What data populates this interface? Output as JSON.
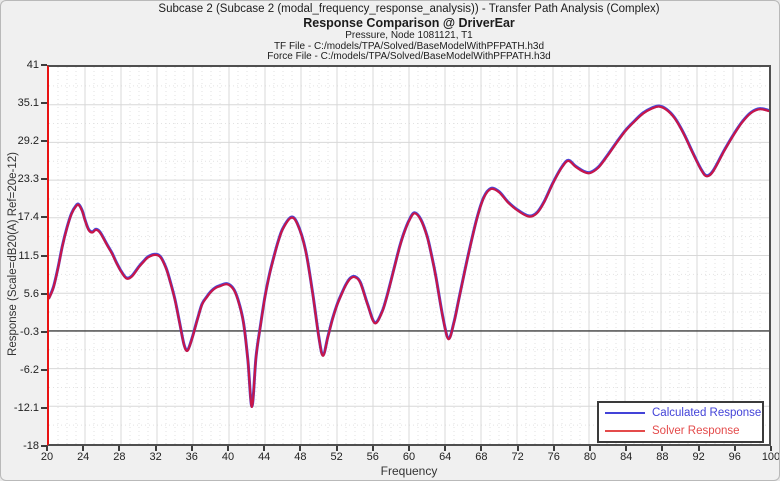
{
  "header": {
    "line1": "Subcase 2 (Subcase 2 (modal_frequency_response_analysis)) - Transfer Path Analysis (Complex)",
    "line2": "Response Comparison @ DriverEar",
    "line3": "Pressure, Node 1081121, T1",
    "line4": "TF File - C:/models/TPA/Solved/BaseModelWithPFPATH.h3d",
    "line5": "Force File - C:/models/TPA/Solved/BaseModelWithPFPATH.h3d"
  },
  "axes": {
    "x_title": "Frequency",
    "y_title": "Response (Scale=dB20(A) Ref=20e-12)",
    "y_tick_labels": [
      "41",
      "35.1",
      "29.2",
      "23.3",
      "17.4",
      "11.5",
      "5.6",
      "-0.3",
      "-6.2",
      "-12.1",
      "-18"
    ],
    "x_tick_labels": [
      "20",
      "24",
      "28",
      "32",
      "36",
      "40",
      "44",
      "48",
      "52",
      "56",
      "60",
      "64",
      "68",
      "72",
      "76",
      "80",
      "84",
      "88",
      "92",
      "96",
      "100"
    ]
  },
  "legend": {
    "entries": [
      {
        "label": "Calculated Response",
        "color": "#4343d8"
      },
      {
        "label": "Solver Response",
        "color": "#e44b4b"
      }
    ]
  },
  "colors": {
    "figure_bg": "#f0f0f0",
    "plot_bg": "#ffffff",
    "grid_major": "#d8d8d8",
    "grid_minor": "#e2e2e2",
    "zero_line": "#3f3f3f",
    "y_axis_line": "#e81212",
    "frame": "#4f4f4f",
    "curve_calculated": "#4848dc",
    "curve_solver": "#c81648"
  },
  "chart_data": {
    "type": "line",
    "title": "Response Comparison @ DriverEar",
    "xlabel": "Frequency",
    "ylabel": "Response (Scale=dB20(A) Ref=20e-12)",
    "xlim": [
      20,
      100
    ],
    "ylim": [
      -18,
      41
    ],
    "x_ticks": [
      20,
      24,
      28,
      32,
      36,
      40,
      44,
      48,
      52,
      56,
      60,
      64,
      68,
      72,
      76,
      80,
      84,
      88,
      92,
      96,
      100
    ],
    "y_ticks": [
      41,
      35.1,
      29.2,
      23.3,
      17.4,
      11.5,
      5.6,
      -0.3,
      -6.2,
      -12.1,
      -18
    ],
    "x_minor_step": 1,
    "grid": "major solid, minor dotted",
    "zero_line_y": -0.3,
    "legend_position": "bottom-right",
    "x": [
      20,
      20.5,
      21,
      21.5,
      22,
      22.5,
      23,
      23.3,
      23.7,
      24,
      24.4,
      24.8,
      25.2,
      25.6,
      26,
      26.5,
      27,
      27.5,
      28,
      28.6,
      29.2,
      30,
      30.5,
      31,
      31.8,
      32.4,
      33,
      33.5,
      34,
      34.5,
      35,
      35.4,
      35.9,
      36.5,
      37,
      37.5,
      38,
      38.5,
      39,
      39.8,
      40.5,
      41,
      41.6,
      42.1,
      42.55,
      43,
      43.5,
      44,
      44.5,
      45,
      45.5,
      46,
      46.9,
      47.6,
      48.5,
      49.3,
      50,
      50.45,
      51,
      51.5,
      52,
      52.5,
      53,
      53.5,
      54,
      54.6,
      55.4,
      56.2,
      57,
      57.5,
      58,
      58.5,
      59,
      59.5,
      60,
      60.6,
      61.3,
      62,
      62.5,
      63,
      63.8,
      64.4,
      65,
      65.6,
      66.5,
      67.5,
      68.3,
      69.1,
      70,
      71,
      72,
      73.3,
      74.2,
      75,
      76,
      77,
      77.7,
      78.5,
      79.4,
      80.1,
      81,
      82,
      83,
      84,
      85,
      86,
      87,
      87.8,
      88.6,
      89.5,
      90.5,
      91.5,
      92.5,
      93.1,
      93.8,
      95,
      96,
      97,
      98,
      99,
      100
    ],
    "series": [
      {
        "name": "Calculated Response",
        "color": "#4848dc",
        "values": [
          4.8,
          6.5,
          9.5,
          13.0,
          15.8,
          18.0,
          19.2,
          19.4,
          18.4,
          17.0,
          15.5,
          15.1,
          15.5,
          15.2,
          14.3,
          13.0,
          11.8,
          10.3,
          9.0,
          7.9,
          8.2,
          9.7,
          10.5,
          11.2,
          11.6,
          11.2,
          9.5,
          7.2,
          4.5,
          1.0,
          -2.5,
          -3.4,
          -1.5,
          1.5,
          3.8,
          4.9,
          5.8,
          6.4,
          6.7,
          7.0,
          6.2,
          4.5,
          1.0,
          -5.0,
          -12.2,
          -4.5,
          0.5,
          5.0,
          8.5,
          11.3,
          13.8,
          15.7,
          17.4,
          16.4,
          12.3,
          5.5,
          -1.5,
          -4.2,
          -1.2,
          1.5,
          3.7,
          5.4,
          6.9,
          7.9,
          8.1,
          7.2,
          3.8,
          0.9,
          2.6,
          4.8,
          7.5,
          10.3,
          13.0,
          15.2,
          16.9,
          18.1,
          17.1,
          14.5,
          11.5,
          8.0,
          1.5,
          -1.6,
          1.0,
          5.0,
          11.0,
          17.0,
          20.5,
          21.9,
          21.4,
          19.8,
          18.6,
          17.6,
          18.1,
          19.8,
          22.8,
          25.3,
          26.3,
          25.4,
          24.6,
          24.4,
          25.2,
          27.0,
          29.0,
          30.9,
          32.4,
          33.7,
          34.5,
          34.8,
          34.3,
          33.0,
          30.6,
          27.6,
          24.8,
          23.9,
          24.7,
          27.8,
          30.2,
          32.3,
          33.8,
          34.4,
          34.1
        ]
      },
      {
        "name": "Solver Response",
        "color": "#c81648",
        "values": [
          4.8,
          6.5,
          9.5,
          13.0,
          15.8,
          18.0,
          19.2,
          19.4,
          18.4,
          17.0,
          15.5,
          15.1,
          15.5,
          15.2,
          14.3,
          13.0,
          11.8,
          10.3,
          9.0,
          7.9,
          8.2,
          9.7,
          10.5,
          11.2,
          11.6,
          11.2,
          9.5,
          7.2,
          4.5,
          1.0,
          -2.5,
          -3.4,
          -1.5,
          1.5,
          3.8,
          4.9,
          5.8,
          6.4,
          6.7,
          7.0,
          6.2,
          4.5,
          1.0,
          -5.0,
          -12.2,
          -4.5,
          0.5,
          5.0,
          8.5,
          11.3,
          13.8,
          15.7,
          17.4,
          16.4,
          12.3,
          5.5,
          -1.5,
          -4.2,
          -1.2,
          1.5,
          3.7,
          5.4,
          6.9,
          7.9,
          8.1,
          7.2,
          3.8,
          0.9,
          2.6,
          4.8,
          7.5,
          10.3,
          13.0,
          15.2,
          16.9,
          18.1,
          17.1,
          14.5,
          11.5,
          8.0,
          1.5,
          -1.6,
          1.0,
          5.0,
          11.0,
          17.0,
          20.5,
          21.9,
          21.4,
          19.8,
          18.6,
          17.6,
          18.1,
          19.8,
          22.8,
          25.3,
          26.3,
          25.4,
          24.6,
          24.4,
          25.2,
          27.0,
          29.0,
          30.9,
          32.4,
          33.7,
          34.5,
          34.8,
          34.3,
          33.0,
          30.6,
          27.6,
          24.8,
          23.9,
          24.7,
          27.8,
          30.2,
          32.3,
          33.8,
          34.4,
          34.1
        ]
      }
    ]
  }
}
